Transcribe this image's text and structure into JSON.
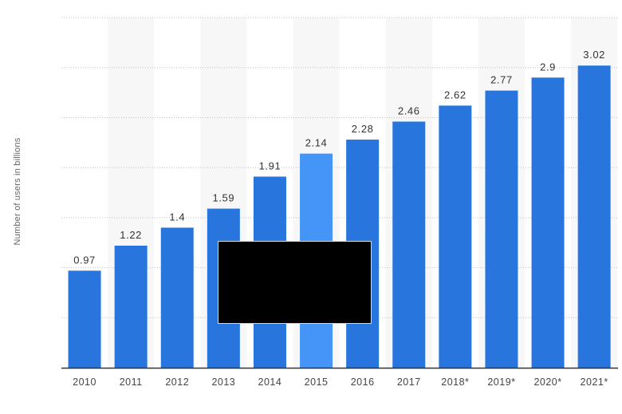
{
  "chart_data": {
    "type": "bar",
    "title": "",
    "xlabel": "",
    "ylabel": "Number of users in billions",
    "categories": [
      "2010",
      "2011",
      "2012",
      "2013",
      "2014",
      "2015",
      "2016",
      "2017",
      "2018*",
      "2019*",
      "2020*",
      "2021*"
    ],
    "values": [
      0.97,
      1.22,
      1.4,
      1.59,
      1.91,
      2.14,
      2.28,
      2.46,
      2.62,
      2.77,
      2.9,
      3.02
    ],
    "ylim": [
      0,
      3.5
    ],
    "grid": true,
    "highlighted_category": "2015",
    "colors": {
      "bar": "#2876dd",
      "bar_highlight": "#4495f7",
      "grid": "#bfbfbf",
      "axis": "#333333",
      "alt_column_band": "#f7f7f7",
      "redaction_box": "#000000"
    }
  }
}
